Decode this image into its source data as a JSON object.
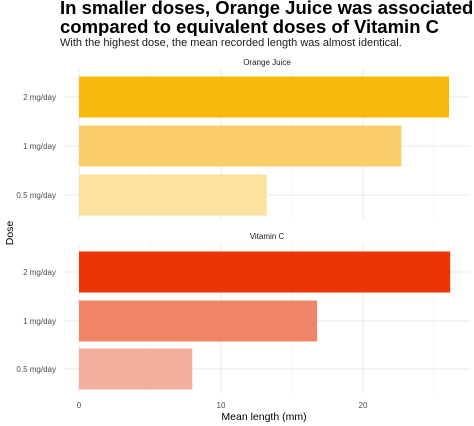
{
  "title": {
    "line1": "In smaller doses, Orange Juice was associated with greater",
    "line2": "compared to equivalent doses of Vitamin C"
  },
  "subtitle": "With the highest dose, the mean recorded length was almost identical.",
  "chart_data": {
    "type": "bar",
    "orientation": "horizontal",
    "xlabel": "Mean length (mm)",
    "ylabel": "Dose",
    "xlim": [
      0,
      27.5
    ],
    "xticks": [
      0,
      10,
      20
    ],
    "grid": true,
    "legend": "none",
    "facets": [
      {
        "name": "Orange Juice",
        "categories": [
          "2 mg/day",
          "1 mg/day",
          "0.5 mg/day"
        ],
        "values": [
          26.06,
          22.7,
          13.23
        ],
        "colors": [
          "#F7B90C",
          "#F9CE6A",
          "#FBE29D"
        ]
      },
      {
        "name": "Vitamin C",
        "categories": [
          "2 mg/day",
          "1 mg/day",
          "0.5 mg/day"
        ],
        "values": [
          26.14,
          16.77,
          7.98
        ],
        "colors": [
          "#EB3507",
          "#EF8467",
          "#F4AE9C"
        ]
      }
    ]
  }
}
